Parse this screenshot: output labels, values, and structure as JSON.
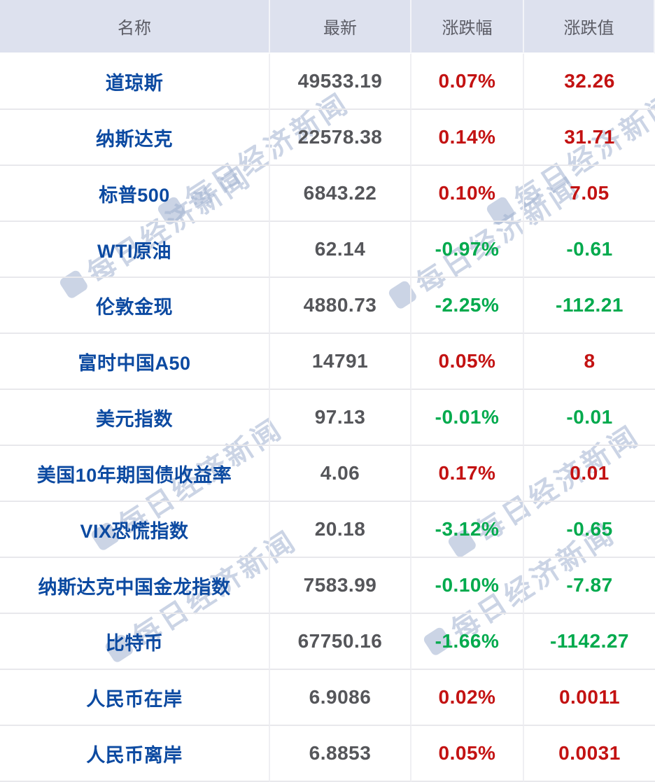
{
  "chart_data": {
    "type": "table",
    "columns": [
      "名称",
      "最新",
      "涨跌幅",
      "涨跌值"
    ],
    "rows": [
      {
        "name": "道琼斯",
        "last": "49533.19",
        "pct": "0.07%",
        "chg": "32.26",
        "dir": "up"
      },
      {
        "name": "纳斯达克",
        "last": "22578.38",
        "pct": "0.14%",
        "chg": "31.71",
        "dir": "up"
      },
      {
        "name": "标普500",
        "last": "6843.22",
        "pct": "0.10%",
        "chg": "7.05",
        "dir": "up"
      },
      {
        "name": "WTI原油",
        "last": "62.14",
        "pct": "-0.97%",
        "chg": "-0.61",
        "dir": "down"
      },
      {
        "name": "伦敦金现",
        "last": "4880.73",
        "pct": "-2.25%",
        "chg": "-112.21",
        "dir": "down"
      },
      {
        "name": "富时中国A50",
        "last": "14791",
        "pct": "0.05%",
        "chg": "8",
        "dir": "up"
      },
      {
        "name": "美元指数",
        "last": "97.13",
        "pct": "-0.01%",
        "chg": "-0.01",
        "dir": "down"
      },
      {
        "name": "美国10年期国债收益率",
        "last": "4.06",
        "pct": "0.17%",
        "chg": "0.01",
        "dir": "up"
      },
      {
        "name": "VIX恐慌指数",
        "last": "20.18",
        "pct": "-3.12%",
        "chg": "-0.65",
        "dir": "down"
      },
      {
        "name": "纳斯达克中国金龙指数",
        "last": "7583.99",
        "pct": "-0.10%",
        "chg": "-7.87",
        "dir": "down"
      },
      {
        "name": "比特币",
        "last": "67750.16",
        "pct": "-1.66%",
        "chg": "-1142.27",
        "dir": "down"
      },
      {
        "name": "人民币在岸",
        "last": "6.9086",
        "pct": "0.02%",
        "chg": "0.0011",
        "dir": "up"
      },
      {
        "name": "人民币离岸",
        "last": "6.8853",
        "pct": "0.05%",
        "chg": "0.0031",
        "dir": "up"
      }
    ]
  },
  "watermark": {
    "text": "每日经济新闻"
  },
  "colors": {
    "up_red": "#c31212",
    "down_green": "#00aa4d",
    "name_blue": "#0c4aa1",
    "value_gray": "#55565a",
    "header_bg": "#dde1ee",
    "watermark_blue": "#c8d2e4"
  }
}
